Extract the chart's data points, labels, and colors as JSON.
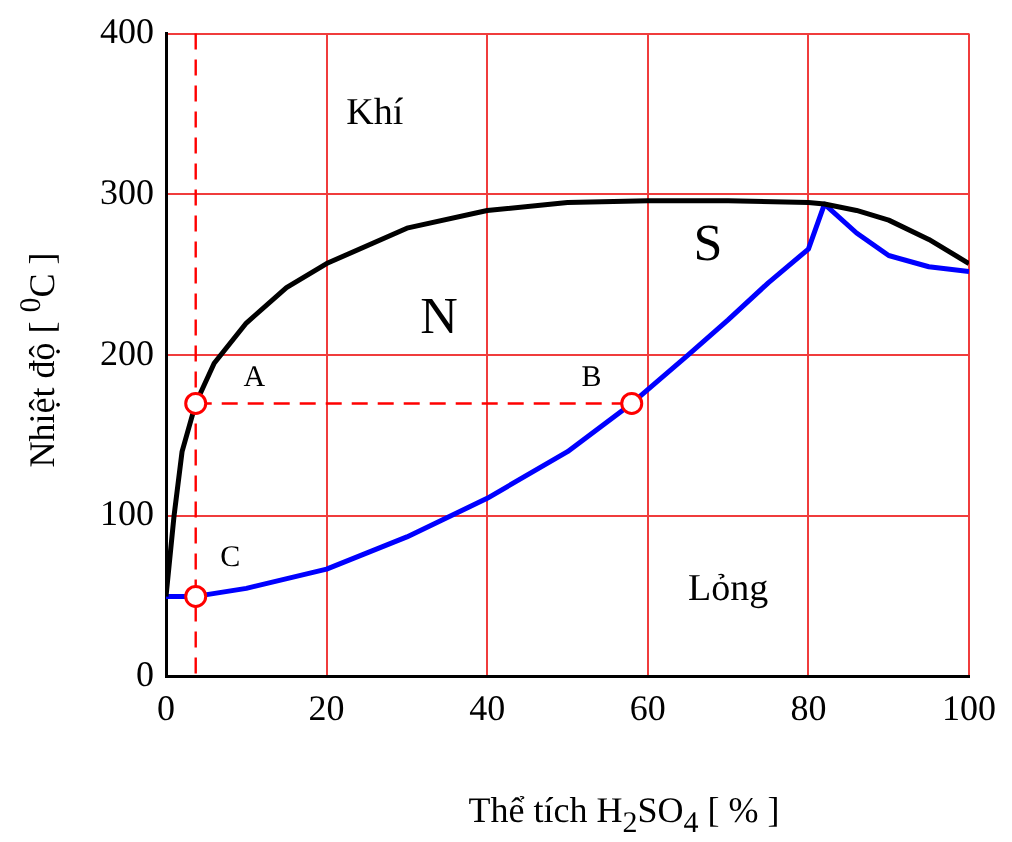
{
  "chart_data": {
    "type": "line",
    "xlabel": "Thể tích  H$_{2}$SO$_{4}$  [ % ]",
    "ylabel": "Nhiệt độ  [ $^{0}$C ]",
    "xlim": [
      0,
      100
    ],
    "xticks": [
      0,
      20,
      40,
      60,
      80,
      100
    ],
    "ylim": [
      0,
      400
    ],
    "yticks": [
      0,
      100,
      200,
      300,
      400
    ],
    "grid": true,
    "legend": false,
    "series": [
      {
        "color": "#000000",
        "marker": "none",
        "line_style": "solid",
        "x": [
          0,
          1,
          2,
          3.7,
          6,
          10,
          15,
          20,
          30,
          40,
          50,
          60,
          70,
          80,
          82,
          86,
          90,
          95,
          100
        ],
        "values": [
          50,
          100,
          140,
          170,
          195,
          220,
          242,
          257,
          279,
          290,
          295,
          296,
          296,
          295,
          294,
          290,
          284,
          272,
          257
        ]
      },
      {
        "color": "#0000ff",
        "marker": "none",
        "line_style": "solid",
        "x": [
          0,
          3.7,
          10,
          20,
          30,
          40,
          50,
          58,
          65,
          70,
          75,
          80,
          82,
          86,
          90,
          95,
          100
        ],
        "values": [
          50,
          50,
          55,
          67,
          87,
          111,
          140,
          170,
          200,
          222,
          245,
          266,
          294,
          276,
          262,
          255,
          252
        ]
      },
      {
        "color": "#ff0000",
        "marker": "none",
        "line_style": "dashed",
        "x": [
          3.7,
          58
        ],
        "values": [
          170,
          170
        ]
      },
      {
        "type": "scatter",
        "color": "#ff0000",
        "marker": "circle",
        "x": [
          3.7,
          58,
          3.7
        ],
        "values": [
          170,
          170,
          50
        ]
      }
    ],
    "ref_lines": [
      {
        "axis": "x",
        "value": 3.7,
        "color": "#ff0000",
        "line_style": "dashed"
      }
    ],
    "annotations": [
      "Khí",
      "N",
      "S",
      "A",
      "B",
      "C",
      "Lỏng"
    ]
  }
}
